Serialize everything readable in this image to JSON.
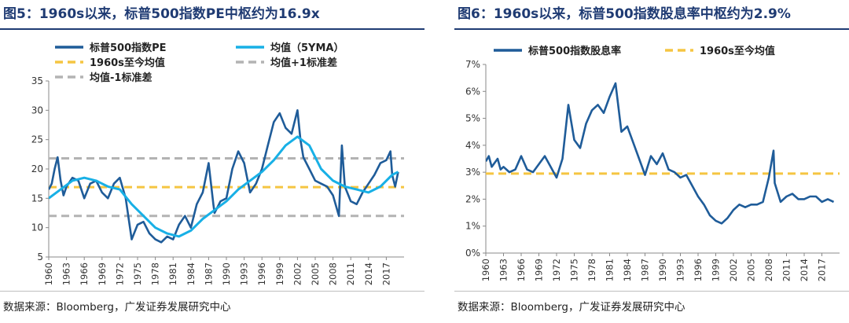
{
  "charts": [
    {
      "id": "left",
      "title": "图5：1960s以来，标普500指数PE中枢约为16.9x",
      "source": "数据来源：Bloomberg，广发证券发展研究中心",
      "chart_data": {
        "type": "line",
        "title": "图5：1960s以来，标普500指数PE中枢约为16.9x",
        "xlabel": "",
        "ylabel": "",
        "xlim": [
          1960,
          2020
        ],
        "ylim": [
          5,
          35
        ],
        "yticks": [
          "5",
          "10",
          "15",
          "20",
          "25",
          "30",
          "35"
        ],
        "xticks": [
          "1960",
          "1963",
          "1966",
          "1969",
          "1972",
          "1975",
          "1978",
          "1981",
          "1984",
          "1987",
          "1990",
          "1993",
          "1996",
          "1999",
          "2002",
          "2005",
          "2008",
          "2011",
          "2014",
          "2017"
        ],
        "grid": false,
        "legend": "top",
        "series": [
          {
            "name": "标普500指数PE",
            "color": "#1f5c99",
            "style": "solid",
            "points": [
              [
                1960,
                16.5
              ],
              [
                1960.5,
                17.5
              ],
              [
                1961,
                20
              ],
              [
                1961.5,
                22
              ],
              [
                1962,
                18
              ],
              [
                1962.5,
                15.5
              ],
              [
                1963,
                17
              ],
              [
                1964,
                18.5
              ],
              [
                1965,
                18
              ],
              [
                1966,
                15
              ],
              [
                1967,
                17.5
              ],
              [
                1968,
                18
              ],
              [
                1969,
                16
              ],
              [
                1970,
                15
              ],
              [
                1971,
                17.5
              ],
              [
                1972,
                18.5
              ],
              [
                1973,
                15
              ],
              [
                1974,
                8
              ],
              [
                1975,
                10.5
              ],
              [
                1976,
                11
              ],
              [
                1977,
                9
              ],
              [
                1978,
                8
              ],
              [
                1979,
                7.5
              ],
              [
                1980,
                8.5
              ],
              [
                1981,
                8
              ],
              [
                1982,
                10.5
              ],
              [
                1983,
                12
              ],
              [
                1984,
                10
              ],
              [
                1985,
                14
              ],
              [
                1986,
                16
              ],
              [
                1987,
                21
              ],
              [
                1987.8,
                14
              ],
              [
                1988,
                12.5
              ],
              [
                1989,
                14.5
              ],
              [
                1990,
                15
              ],
              [
                1991,
                20
              ],
              [
                1992,
                23
              ],
              [
                1993,
                21
              ],
              [
                1994,
                16
              ],
              [
                1995,
                17.5
              ],
              [
                1996,
                20
              ],
              [
                1997,
                24
              ],
              [
                1998,
                28
              ],
              [
                1999,
                29.5
              ],
              [
                2000,
                27
              ],
              [
                2001,
                26
              ],
              [
                2002,
                30
              ],
              [
                2002.5,
                25
              ],
              [
                2003,
                22
              ],
              [
                2004,
                20
              ],
              [
                2005,
                18
              ],
              [
                2006,
                17.5
              ],
              [
                2007,
                17
              ],
              [
                2008,
                15.5
              ],
              [
                2009,
                12
              ],
              [
                2009.5,
                24
              ],
              [
                2010,
                17
              ],
              [
                2011,
                14.5
              ],
              [
                2012,
                14
              ],
              [
                2013,
                16
              ],
              [
                2014,
                17.5
              ],
              [
                2015,
                19
              ],
              [
                2016,
                21
              ],
              [
                2017,
                21.5
              ],
              [
                2017.7,
                23
              ],
              [
                2018,
                19
              ],
              [
                2018.5,
                17
              ],
              [
                2019,
                19.5
              ]
            ]
          },
          {
            "name": "均值（5YMA）",
            "color": "#18b0e6",
            "style": "solid",
            "points": [
              [
                1960,
                15
              ],
              [
                1962,
                16.5
              ],
              [
                1964,
                18
              ],
              [
                1966,
                18.5
              ],
              [
                1968,
                18
              ],
              [
                1970,
                17
              ],
              [
                1972,
                16.5
              ],
              [
                1974,
                14
              ],
              [
                1976,
                12
              ],
              [
                1978,
                10
              ],
              [
                1980,
                9
              ],
              [
                1982,
                8.5
              ],
              [
                1984,
                9.5
              ],
              [
                1986,
                11.5
              ],
              [
                1988,
                13
              ],
              [
                1990,
                14.5
              ],
              [
                1992,
                16.5
              ],
              [
                1994,
                18
              ],
              [
                1996,
                19.5
              ],
              [
                1998,
                21.5
              ],
              [
                2000,
                24
              ],
              [
                2002,
                25.5
              ],
              [
                2004,
                24
              ],
              [
                2006,
                20
              ],
              [
                2008,
                18
              ],
              [
                2010,
                17
              ],
              [
                2012,
                16.5
              ],
              [
                2014,
                16
              ],
              [
                2016,
                17
              ],
              [
                2018,
                19
              ],
              [
                2019,
                19.5
              ]
            ]
          },
          {
            "name": "1960s至今均值",
            "color": "#f5c542",
            "style": "dashed",
            "value": 16.9
          },
          {
            "name": "均值+1标准差",
            "color": "#b3b3b3",
            "style": "dashed",
            "value": 21.8
          },
          {
            "name": "均值-1标准差",
            "color": "#b3b3b3",
            "style": "dashed",
            "value": 12.0
          }
        ]
      }
    },
    {
      "id": "right",
      "title": "图6：1960s以来，标普500指数股息率中枢约为2.9%",
      "source": "数据来源：Bloomberg，广发证券发展研究中心",
      "chart_data": {
        "type": "line",
        "title": "图6：1960s以来，标普500指数股息率中枢约为2.9%",
        "xlabel": "",
        "ylabel": "",
        "xlim": [
          1960,
          2020
        ],
        "ylim": [
          0,
          7
        ],
        "yticks": [
          "0%",
          "1%",
          "2%",
          "3%",
          "4%",
          "5%",
          "6%",
          "7%"
        ],
        "xticks": [
          "1960",
          "1963",
          "1966",
          "1969",
          "1972",
          "1975",
          "1978",
          "1981",
          "1984",
          "1987",
          "1990",
          "1993",
          "1996",
          "1999",
          "2002",
          "2005",
          "2008",
          "2011",
          "2014",
          "2017"
        ],
        "grid": false,
        "legend": "top",
        "series": [
          {
            "name": "标普500指数股息率",
            "color": "#1f5c99",
            "style": "solid",
            "points": [
              [
                1960,
                3.4
              ],
              [
                1960.5,
                3.6
              ],
              [
                1961,
                3.2
              ],
              [
                1962,
                3.5
              ],
              [
                1962.5,
                3.1
              ],
              [
                1963,
                3.2
              ],
              [
                1964,
                3.0
              ],
              [
                1965,
                3.1
              ],
              [
                1966,
                3.6
              ],
              [
                1967,
                3.1
              ],
              [
                1968,
                3.0
              ],
              [
                1969,
                3.3
              ],
              [
                1970,
                3.6
              ],
              [
                1971,
                3.2
              ],
              [
                1972,
                2.8
              ],
              [
                1973,
                3.5
              ],
              [
                1974,
                5.5
              ],
              [
                1975,
                4.2
              ],
              [
                1976,
                3.9
              ],
              [
                1977,
                4.8
              ],
              [
                1978,
                5.3
              ],
              [
                1979,
                5.5
              ],
              [
                1980,
                5.2
              ],
              [
                1981,
                5.8
              ],
              [
                1982,
                6.3
              ],
              [
                1983,
                4.5
              ],
              [
                1984,
                4.7
              ],
              [
                1985,
                4.1
              ],
              [
                1986,
                3.5
              ],
              [
                1987,
                2.9
              ],
              [
                1988,
                3.6
              ],
              [
                1989,
                3.3
              ],
              [
                1990,
                3.7
              ],
              [
                1991,
                3.1
              ],
              [
                1992,
                3.0
              ],
              [
                1993,
                2.8
              ],
              [
                1994,
                2.9
              ],
              [
                1995,
                2.5
              ],
              [
                1996,
                2.1
              ],
              [
                1997,
                1.8
              ],
              [
                1998,
                1.4
              ],
              [
                1999,
                1.2
              ],
              [
                2000,
                1.1
              ],
              [
                2001,
                1.3
              ],
              [
                2002,
                1.6
              ],
              [
                2003,
                1.8
              ],
              [
                2004,
                1.7
              ],
              [
                2005,
                1.8
              ],
              [
                2006,
                1.8
              ],
              [
                2007,
                1.9
              ],
              [
                2008,
                2.8
              ],
              [
                2008.8,
                3.8
              ],
              [
                2009,
                2.6
              ],
              [
                2010,
                1.9
              ],
              [
                2011,
                2.1
              ],
              [
                2012,
                2.2
              ],
              [
                2013,
                2.0
              ],
              [
                2014,
                2.0
              ],
              [
                2015,
                2.1
              ],
              [
                2016,
                2.1
              ],
              [
                2017,
                1.9
              ],
              [
                2018,
                2.0
              ],
              [
                2019,
                1.9
              ]
            ]
          },
          {
            "name": "1960s至今均值",
            "color": "#f5c542",
            "style": "dashed",
            "value": 2.95
          }
        ]
      }
    }
  ]
}
